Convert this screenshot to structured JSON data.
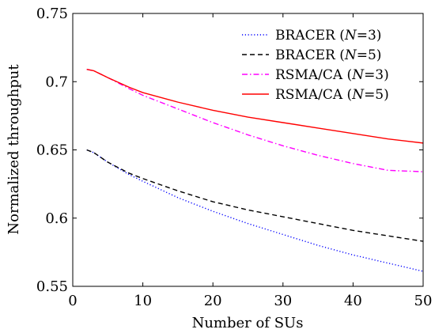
{
  "chart_data": {
    "type": "line",
    "title": "",
    "xlabel": "Number of SUs",
    "ylabel": "Normalized throughput",
    "xlim": [
      0,
      50
    ],
    "ylim": [
      0.55,
      0.75
    ],
    "xticks": [
      0,
      10,
      20,
      30,
      40,
      50
    ],
    "yticks": [
      0.55,
      0.6,
      0.65,
      0.7,
      0.75
    ],
    "xtick_labels": [
      "0",
      "10",
      "20",
      "30",
      "40",
      "50"
    ],
    "ytick_labels": [
      "0.55",
      "0.6",
      "0.65",
      "0.7",
      "0.75"
    ],
    "grid": false,
    "legend_position": "top-right",
    "x": [
      2,
      3,
      5,
      8,
      10,
      15,
      20,
      25,
      30,
      35,
      40,
      45,
      50
    ],
    "series": [
      {
        "legend_plain": "BRACER (",
        "legend_var": "N",
        "legend_eq": "=3)",
        "color": "#0000ff",
        "dash": "dotted",
        "values": [
          0.65,
          0.648,
          0.641,
          0.632,
          0.627,
          0.615,
          0.605,
          0.596,
          0.588,
          0.58,
          0.573,
          0.567,
          0.561
        ]
      },
      {
        "legend_plain": "BRACER (",
        "legend_var": "N",
        "legend_eq": "=5)",
        "color": "#000000",
        "dash": "dashed",
        "values": [
          0.65,
          0.648,
          0.641,
          0.633,
          0.629,
          0.62,
          0.612,
          0.606,
          0.601,
          0.596,
          0.591,
          0.587,
          0.583
        ]
      },
      {
        "legend_plain": "RSMA/CA (",
        "legend_var": "N",
        "legend_eq": "=3)",
        "color": "#ff00ff",
        "dash": "dashdot",
        "values": [
          0.709,
          0.708,
          0.703,
          0.695,
          0.69,
          0.68,
          0.67,
          0.661,
          0.653,
          0.646,
          0.64,
          0.635,
          0.634
        ]
      },
      {
        "legend_plain": "RSMA/CA (",
        "legend_var": "N",
        "legend_eq": "=5)",
        "color": "#ff0000",
        "dash": "solid",
        "values": [
          0.709,
          0.708,
          0.703,
          0.696,
          0.692,
          0.685,
          0.679,
          0.674,
          0.67,
          0.666,
          0.662,
          0.658,
          0.655
        ]
      }
    ]
  }
}
